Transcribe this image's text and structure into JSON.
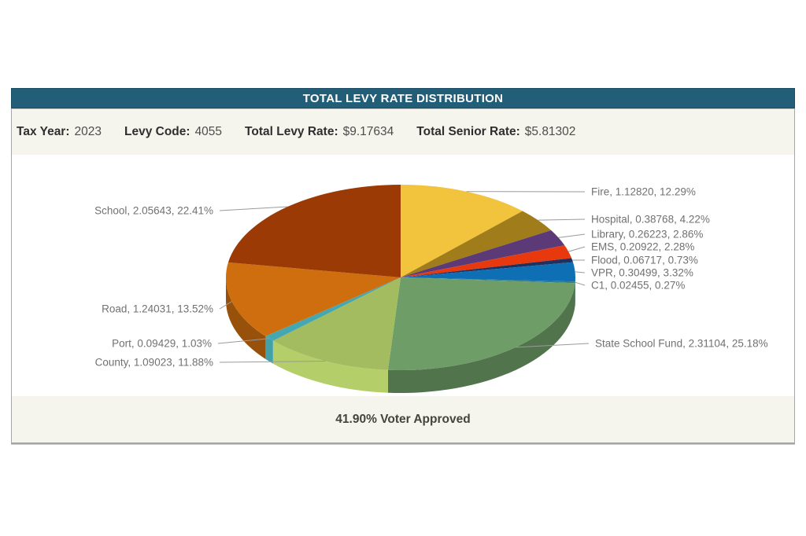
{
  "header": {
    "title": "TOTAL LEVY RATE DISTRIBUTION"
  },
  "info": {
    "items": [
      {
        "label": "Tax Year:",
        "value": "2023"
      },
      {
        "label": "Levy Code:",
        "value": "4055"
      },
      {
        "label": "Total Levy Rate:",
        "value": "$9.17634"
      },
      {
        "label": "Total Senior Rate:",
        "value": "$5.81302"
      }
    ]
  },
  "footer": {
    "text": "41.90% Voter Approved"
  },
  "colors": {
    "title_bar": "#235E79",
    "band_bg": "#F5F4ED",
    "callout_line": "#9A9A9A",
    "label_text": "#717171"
  },
  "chart_data": {
    "type": "pie",
    "style": "3d",
    "title": "TOTAL LEVY RATE DISTRIBUTION",
    "start_angle_deg": 0,
    "direction": "clockwise",
    "label_format": "name, rate, percent",
    "slices": [
      {
        "label": "Fire",
        "value": "1.12820",
        "pct": 12.29,
        "color": "#F2C33D"
      },
      {
        "label": "Hospital",
        "value": "0.38768",
        "pct": 4.22,
        "color": "#A07C1A"
      },
      {
        "label": "Library",
        "value": "0.26223",
        "pct": 2.86,
        "color": "#5C3A78"
      },
      {
        "label": "EMS",
        "value": "0.20922",
        "pct": 2.28,
        "color": "#E8380D"
      },
      {
        "label": "Flood",
        "value": "0.06717",
        "pct": 0.73,
        "color": "#20305F"
      },
      {
        "label": "VPR",
        "value": "0.30499",
        "pct": 3.32,
        "color": "#0E6FB5"
      },
      {
        "label": "C1",
        "value": "0.02455",
        "pct": 0.27,
        "color": "#2F7E8C"
      },
      {
        "label": "State School Fund",
        "value": "2.31104",
        "pct": 25.18,
        "color": "#6E9D68"
      },
      {
        "label": "County",
        "value": "1.09023",
        "pct": 11.88,
        "color": "#A4BC60"
      },
      {
        "label": "Port",
        "value": "0.09429",
        "pct": 1.03,
        "color": "#45A8B0"
      },
      {
        "label": "Road",
        "value": "1.24031",
        "pct": 13.52,
        "color": "#CE6E0E"
      },
      {
        "label": "School",
        "value": "2.05643",
        "pct": 22.41,
        "color": "#9C3A06"
      }
    ]
  }
}
